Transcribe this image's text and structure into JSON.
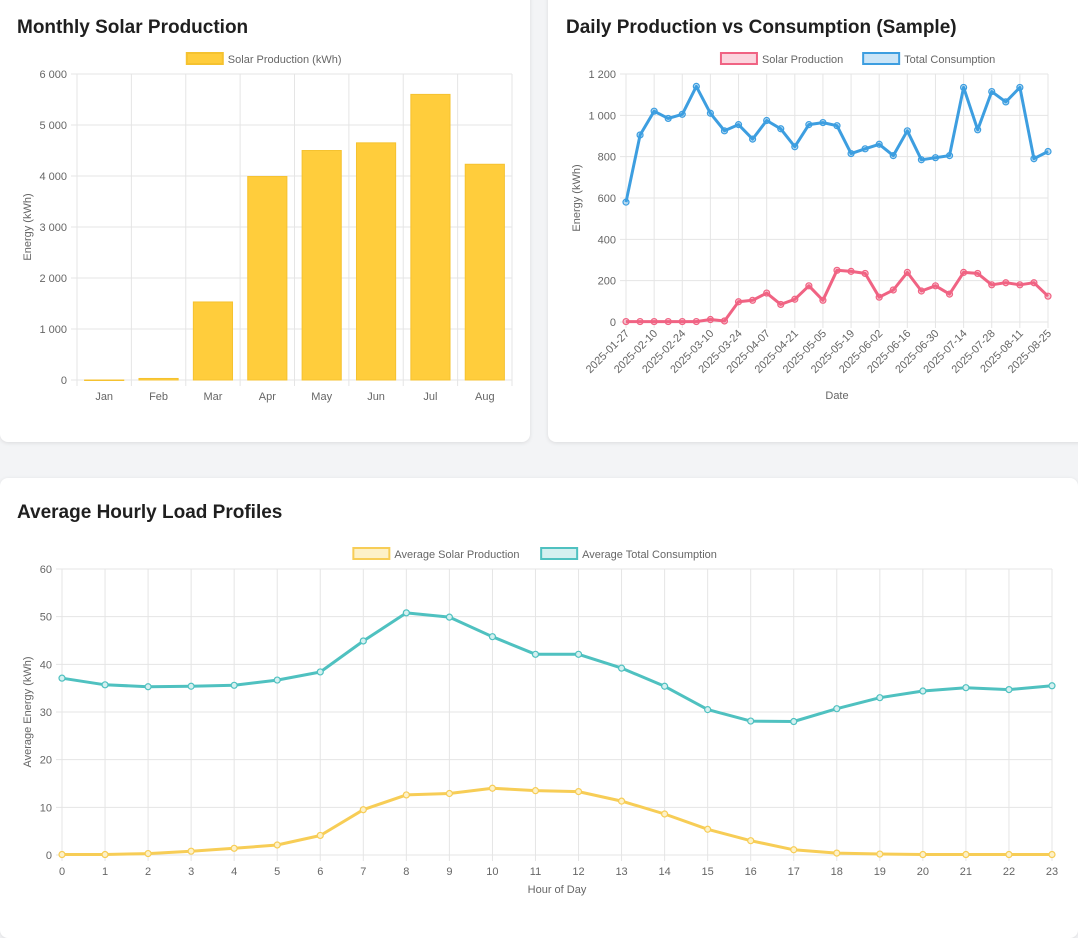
{
  "monthly": {
    "title": "Monthly Solar Production",
    "chart_data": {
      "type": "bar",
      "categories": [
        "Jan",
        "Feb",
        "Mar",
        "Apr",
        "May",
        "Jun",
        "Jul",
        "Aug"
      ],
      "series": [
        {
          "name": "Solar Production (kWh)",
          "values": [
            0,
            30,
            1530,
            3990,
            4500,
            4650,
            5600,
            4230
          ]
        }
      ],
      "ylabel": "Energy (kWh)",
      "ylim": [
        0,
        6000
      ],
      "yticks": [
        "0",
        "1 000",
        "2 000",
        "3 000",
        "4 000",
        "5 000",
        "6 000"
      ],
      "grid": true,
      "legend": "top",
      "colors": {
        "fill": "#ffcd3c",
        "border": "#f5c230"
      }
    }
  },
  "daily": {
    "title": "Daily Production vs Consumption (Sample)",
    "chart_data": {
      "type": "line",
      "xlabel": "Date",
      "ylabel": "Energy (kWh)",
      "ylim": [
        0,
        1200
      ],
      "yticks": [
        "0",
        "200",
        "400",
        "600",
        "800",
        "1 000",
        "1 200"
      ],
      "x_tick_labels": [
        "2025-01-27",
        "2025-02-10",
        "2025-02-24",
        "2025-03-10",
        "2025-03-24",
        "2025-04-07",
        "2025-04-21",
        "2025-05-05",
        "2025-05-19",
        "2025-06-02",
        "2025-06-16",
        "2025-06-30",
        "2025-07-14",
        "2025-07-28",
        "2025-08-11",
        "2025-08-25"
      ],
      "grid": true,
      "legend": "top",
      "series": [
        {
          "name": "Solar Production",
          "color": "#f06383",
          "values": [
            2,
            2,
            2,
            2,
            2,
            2,
            12,
            5,
            98,
            105,
            140,
            85,
            110,
            175,
            105,
            250,
            245,
            235,
            120,
            155,
            240,
            150,
            175,
            135,
            240,
            235,
            180,
            190,
            180,
            190,
            125
          ]
        },
        {
          "name": "Total Consumption",
          "color": "#3d9ee0",
          "values": [
            580,
            905,
            1020,
            985,
            1005,
            1140,
            1010,
            925,
            955,
            885,
            975,
            935,
            848,
            955,
            965,
            950,
            815,
            838,
            860,
            805,
            925,
            785,
            795,
            805,
            1135,
            930,
            1115,
            1065,
            1135,
            790,
            825
          ]
        }
      ]
    }
  },
  "hourly": {
    "title": "Average Hourly Load Profiles",
    "chart_data": {
      "type": "line",
      "x": [
        0,
        1,
        2,
        3,
        4,
        5,
        6,
        7,
        8,
        9,
        10,
        11,
        12,
        13,
        14,
        15,
        16,
        17,
        18,
        19,
        20,
        21,
        22,
        23
      ],
      "xlabel": "Hour of Day",
      "ylabel": "Average Energy (kWh)",
      "ylim": [
        0,
        60
      ],
      "yticks": [
        "0",
        "10",
        "20",
        "30",
        "40",
        "50",
        "60"
      ],
      "grid": true,
      "legend": "top",
      "series": [
        {
          "name": "Average Solar Production",
          "color": "#f7cd56",
          "fill": "#fdf1c7",
          "values": [
            0.1,
            0.1,
            0.3,
            0.8,
            1.4,
            2.1,
            4.1,
            9.5,
            12.6,
            12.9,
            14.0,
            13.5,
            13.3,
            11.3,
            8.6,
            5.4,
            3.0,
            1.1,
            0.4,
            0.2,
            0.1,
            0.1,
            0.1,
            0.1
          ]
        },
        {
          "name": "Average Total Consumption",
          "color": "#4fc1c0",
          "fill": "#d4f0f0",
          "values": [
            37.1,
            35.7,
            35.3,
            35.4,
            35.6,
            36.7,
            38.4,
            44.9,
            50.8,
            49.9,
            45.8,
            42.1,
            42.1,
            39.2,
            35.4,
            30.5,
            28.1,
            28.0,
            30.7,
            33.0,
            34.4,
            35.1,
            34.7,
            35.5
          ]
        }
      ]
    }
  }
}
